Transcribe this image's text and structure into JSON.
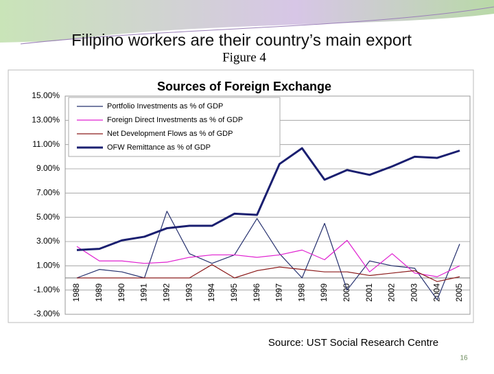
{
  "slide": {
    "title": "Filipino workers are their country’s main export",
    "figure_label": "Figure 4",
    "source": "Source: UST Social Research Centre",
    "page_number": "16"
  },
  "chart_data": {
    "type": "line",
    "title": "Sources of Foreign Exchange",
    "categories": [
      "1988",
      "1989",
      "1990",
      "1991",
      "1992",
      "1993",
      "1994",
      "1995",
      "1996",
      "1997",
      "1998",
      "1999",
      "2000",
      "2001",
      "2002",
      "2003",
      "2004",
      "2005"
    ],
    "series": [
      {
        "name": "Portfolio Investments as % of GDP",
        "color": "#25306e",
        "line_width": 1.2,
        "values": [
          0,
          0.7,
          0.5,
          0,
          5.5,
          2.0,
          1.2,
          1.9,
          4.9,
          2.0,
          0,
          4.5,
          -1.0,
          1.4,
          1.0,
          0.8,
          -1.8,
          2.8
        ]
      },
      {
        "name": "Foreign Direct Investments as % of GDP",
        "color": "#e020d0",
        "line_width": 1.2,
        "values": [
          2.6,
          1.4,
          1.4,
          1.2,
          1.3,
          1.7,
          1.9,
          1.9,
          1.7,
          1.9,
          2.3,
          1.5,
          3.1,
          0.5,
          2.0,
          0.4,
          0.1,
          1.0
        ]
      },
      {
        "name": "Net Development Flows as % of GDP",
        "color": "#8b1a1a",
        "line_width": 1.2,
        "values": [
          0,
          0,
          0,
          0,
          0,
          0,
          1.1,
          0,
          0.6,
          0.9,
          0.7,
          0.5,
          0.5,
          0.2,
          0.4,
          0.6,
          -0.3,
          0.1
        ]
      },
      {
        "name": "OFW Remittance as % of GDP",
        "color": "#1a1f70",
        "line_width": 3,
        "values": [
          2.3,
          2.4,
          3.1,
          3.4,
          4.1,
          4.3,
          4.3,
          5.3,
          5.2,
          9.4,
          10.7,
          8.1,
          8.9,
          8.5,
          9.2,
          10.0,
          9.9,
          10.5
        ]
      }
    ],
    "ylim": [
      -3,
      15
    ],
    "yticks": [
      {
        "value": -3,
        "label": "-3.00%"
      },
      {
        "value": -1,
        "label": "-1.00%"
      },
      {
        "value": 1,
        "label": "1.00%"
      },
      {
        "value": 3,
        "label": "3.00%"
      },
      {
        "value": 5,
        "label": "5.00%"
      },
      {
        "value": 7,
        "label": "7.00%"
      },
      {
        "value": 9,
        "label": "9.00%"
      },
      {
        "value": 11,
        "label": "11.00%"
      },
      {
        "value": 13,
        "label": "13.00%"
      },
      {
        "value": 15,
        "label": "15.00%"
      }
    ],
    "grid": true,
    "legend": "upper-left"
  }
}
